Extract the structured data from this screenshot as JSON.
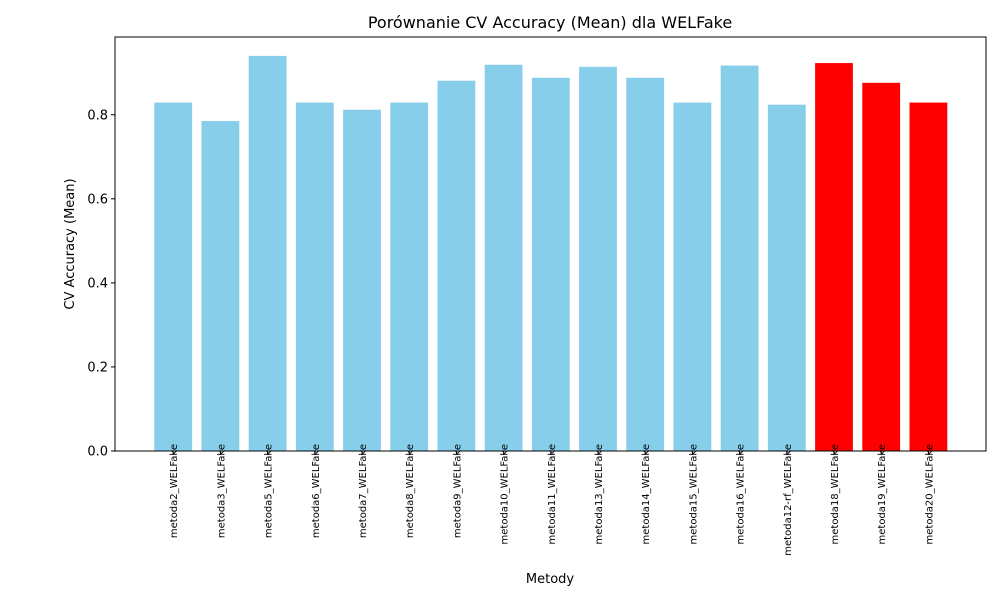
{
  "chart_data": {
    "type": "bar",
    "title": "Porównanie CV Accuracy (Mean) dla WELFake",
    "xlabel": "Metody",
    "ylabel": "CV Accuracy (Mean)",
    "ylim": [
      0,
      0.985
    ],
    "yticks": [
      "0.0",
      "0.2",
      "0.4",
      "0.6",
      "0.8"
    ],
    "grid": false,
    "categories": [
      "metoda2_WELFake",
      "metoda3_WELFake",
      "metoda5_WELFake",
      "metoda6_WELFake",
      "metoda7_WELFake",
      "metoda8_WELFake",
      "metoda9_WELFake",
      "metoda10_WELFake",
      "metoda11_WELFake",
      "metoda13_WELFake",
      "metoda14_WELFake",
      "metoda15_WELFake",
      "metoda16_WELFake",
      "metoda12-rf_WELFake",
      "metoda18_WELFake",
      "metoda19_WELFake",
      "metoda20_WELFake"
    ],
    "values": [
      0.829,
      0.785,
      0.94,
      0.829,
      0.812,
      0.829,
      0.881,
      0.919,
      0.888,
      0.914,
      0.888,
      0.829,
      0.917,
      0.824,
      0.923,
      0.876,
      0.829
    ],
    "colors": [
      "#87CEEB",
      "#87CEEB",
      "#87CEEB",
      "#87CEEB",
      "#87CEEB",
      "#87CEEB",
      "#87CEEB",
      "#87CEEB",
      "#87CEEB",
      "#87CEEB",
      "#87CEEB",
      "#87CEEB",
      "#87CEEB",
      "#87CEEB",
      "#FF0000",
      "#FF0000",
      "#FF0000"
    ]
  }
}
